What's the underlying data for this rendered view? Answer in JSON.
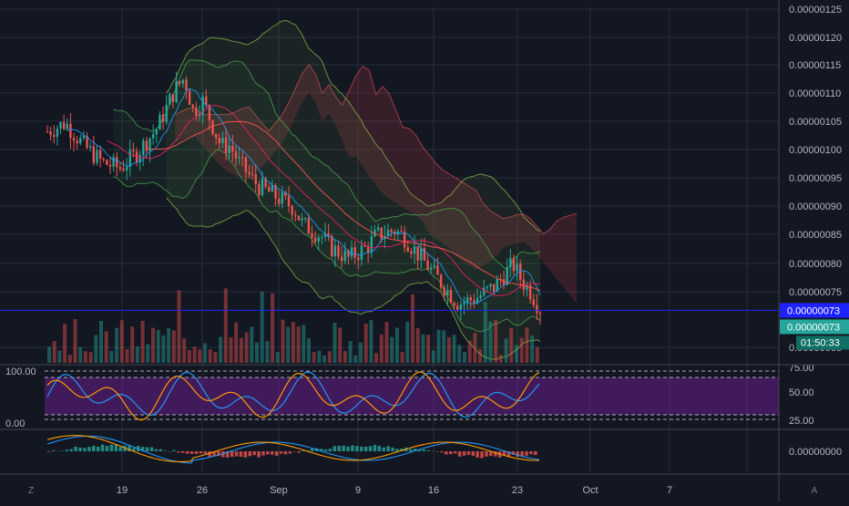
{
  "chart_data": [
    {
      "type": "candlestick",
      "panel": "price",
      "y_ticks": [
        "0.00000125",
        "0.00000120",
        "0.00000115",
        "0.00000110",
        "0.00000105",
        "0.00000100",
        "0.00000095",
        "0.00000090",
        "0.00000085",
        "0.00000080",
        "0.00000075",
        "0.00000065"
      ],
      "ylim": [
        6.35e-07,
        1.265e-06
      ],
      "price_line": {
        "label": "0.00000073",
        "value": 7.28e-07,
        "color": "#1e22ff"
      },
      "last_price": {
        "label": "0.00000073",
        "color": "#26a69a"
      },
      "countdown": "01:50:33",
      "colors": {
        "up": "#26a69a",
        "down": "#ef5350",
        "cloud": "#7a2f3a",
        "band": "#4caf50",
        "ma": "#2196f3"
      },
      "close_path": [
        [
          0,
          1.045
        ],
        [
          2,
          1.06
        ],
        [
          4,
          1.02
        ],
        [
          6,
          0.99
        ],
        [
          8,
          0.98
        ],
        [
          10,
          1.01
        ],
        [
          12,
          1.05
        ],
        [
          14,
          1.12
        ],
        [
          15,
          1.14
        ],
        [
          16,
          1.08
        ],
        [
          17,
          1.1
        ],
        [
          18,
          1.06
        ],
        [
          19,
          1.02
        ],
        [
          20,
          1.02
        ],
        [
          21,
          0.99
        ],
        [
          22,
          0.97
        ],
        [
          23,
          0.95
        ],
        [
          25,
          0.93
        ],
        [
          27,
          0.91
        ],
        [
          28,
          0.88
        ],
        [
          30,
          0.86
        ],
        [
          31,
          0.84
        ],
        [
          33,
          0.82
        ],
        [
          35,
          0.84
        ],
        [
          36,
          0.86
        ],
        [
          38,
          0.87
        ],
        [
          39,
          0.86
        ],
        [
          40,
          0.84
        ],
        [
          42,
          0.8
        ],
        [
          44,
          0.76
        ],
        [
          45,
          0.74
        ],
        [
          47,
          0.75
        ],
        [
          49,
          0.77
        ],
        [
          50,
          0.79
        ],
        [
          51,
          0.81
        ],
        [
          52,
          0.78
        ],
        [
          53,
          0.76
        ],
        [
          54,
          0.73
        ]
      ]
    },
    {
      "type": "line",
      "panel": "stoch-rsi",
      "y_ticks_left": [
        "100.00",
        "0.00"
      ],
      "y_ticks_right": [
        "75.00",
        "50.00",
        "25.00"
      ],
      "band_color": "#7b1fa2",
      "series": [
        {
          "color": "#2196f3"
        },
        {
          "color": "#ff9800"
        }
      ]
    },
    {
      "type": "macd",
      "panel": "macd",
      "y_ticks": [
        "0.00000000"
      ]
    }
  ],
  "x_axis": {
    "labels": [
      "19",
      "26",
      "Sep",
      "9",
      "16",
      "23",
      "Oct",
      "7"
    ]
  },
  "footer": {
    "left_icon_label": "Z",
    "right_icon_label": "A"
  }
}
